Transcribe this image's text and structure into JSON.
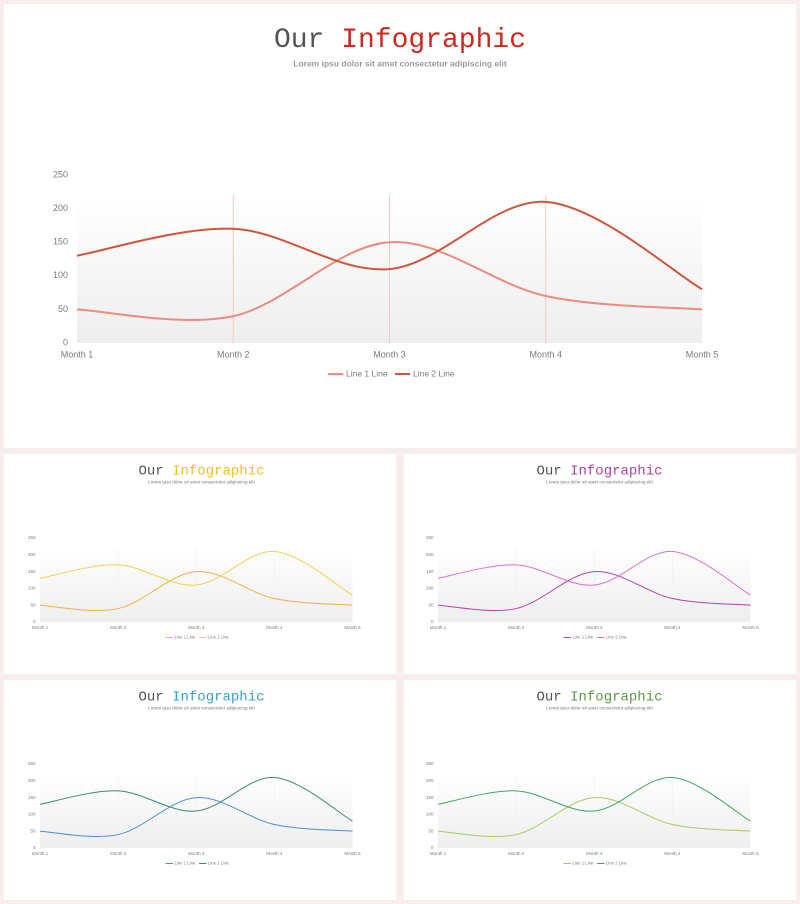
{
  "chart_data": [
    {
      "type": "line",
      "title": [
        "Our",
        "Infographic"
      ],
      "title_colors": [
        "#555555",
        "#d0281e"
      ],
      "subtitle": "Lorem ipsu dolor sit amet consectetur adipiscing elit",
      "categories": [
        "Month 1",
        "Month 2",
        "Month 3",
        "Month 4",
        "Month 5"
      ],
      "series": [
        {
          "name": "Line 1 Line",
          "color": "#ee8a80",
          "values": [
            50,
            40,
            150,
            70,
            50
          ]
        },
        {
          "name": "Line 2 Line",
          "color": "#d0553a",
          "values": [
            130,
            170,
            110,
            210,
            80
          ]
        }
      ],
      "ylim": [
        0,
        250
      ],
      "yticks": [
        0,
        50,
        100,
        150,
        200,
        250
      ],
      "grid": "x",
      "grid_color": "#f5c8c8",
      "legend": "bottom"
    },
    {
      "type": "line",
      "title": [
        "Our",
        "Infographic"
      ],
      "title_colors": [
        "#555555",
        "#f0c020"
      ],
      "subtitle": "Lorem ipsu dolor sit amet consectetur adipiscing elit",
      "categories": [
        "Month 1",
        "Month 2",
        "Month 3",
        "Month 4",
        "Month 5"
      ],
      "series": [
        {
          "name": "Line 1 Line",
          "color": "#f0b040",
          "values": [
            50,
            40,
            150,
            70,
            50
          ]
        },
        {
          "name": "Line 2 Line",
          "color": "#f5d050",
          "values": [
            130,
            170,
            110,
            210,
            80
          ]
        }
      ],
      "ylim": [
        0,
        250
      ],
      "yticks": [
        0,
        50,
        100,
        150,
        200,
        250
      ],
      "grid": "x",
      "grid_color": "#eeeeee",
      "legend": "bottom"
    },
    {
      "type": "line",
      "title": [
        "Our",
        "Infographic"
      ],
      "title_colors": [
        "#555555",
        "#b040a0"
      ],
      "subtitle": "Lorem ipsu dolor sit amet consectetur adipiscing elit",
      "categories": [
        "Month 1",
        "Month 2",
        "Month 3",
        "Month 4",
        "Month 5"
      ],
      "series": [
        {
          "name": "Line 1 Line",
          "color": "#b840b0",
          "values": [
            50,
            40,
            150,
            70,
            50
          ]
        },
        {
          "name": "Line 2 Line",
          "color": "#e070d0",
          "values": [
            130,
            170,
            110,
            210,
            80
          ]
        }
      ],
      "ylim": [
        0,
        250
      ],
      "yticks": [
        0,
        50,
        100,
        150,
        200,
        250
      ],
      "grid": "x",
      "grid_color": "#eeeeee",
      "legend": "bottom"
    },
    {
      "type": "line",
      "title": [
        "Our",
        "Infographic"
      ],
      "title_colors": [
        "#555555",
        "#3aa0c8"
      ],
      "subtitle": "Lorem ipsu dolor sit amet consectetur adipiscing elit",
      "categories": [
        "Month 1",
        "Month 2",
        "Month 3",
        "Month 4",
        "Month 5"
      ],
      "series": [
        {
          "name": "Line 1 Line",
          "color": "#4a90d9",
          "values": [
            50,
            40,
            150,
            70,
            50
          ]
        },
        {
          "name": "Line 2 Line",
          "color": "#3a8a70",
          "values": [
            130,
            170,
            110,
            210,
            80
          ]
        }
      ],
      "ylim": [
        0,
        250
      ],
      "yticks": [
        0,
        50,
        100,
        150,
        200,
        250
      ],
      "grid": "x",
      "grid_color": "#eeeeee",
      "legend": "bottom"
    },
    {
      "type": "line",
      "title": [
        "Our",
        "Infographic"
      ],
      "title_colors": [
        "#555555",
        "#5a9a40"
      ],
      "subtitle": "Lorem ipsu dolor sit amet consectetur adipiscing elit",
      "categories": [
        "Month 1",
        "Month 2",
        "Month 3",
        "Month 4",
        "Month 5"
      ],
      "series": [
        {
          "name": "Line 1 Line",
          "color": "#a8c860",
          "values": [
            50,
            40,
            150,
            70,
            50
          ]
        },
        {
          "name": "Line 2 Line",
          "color": "#3aaa60",
          "values": [
            130,
            170,
            110,
            210,
            80
          ]
        }
      ],
      "ylim": [
        0,
        250
      ],
      "yticks": [
        0,
        50,
        100,
        150,
        200,
        250
      ],
      "grid": "x",
      "grid_color": "#eeeeee",
      "legend": "bottom"
    }
  ]
}
